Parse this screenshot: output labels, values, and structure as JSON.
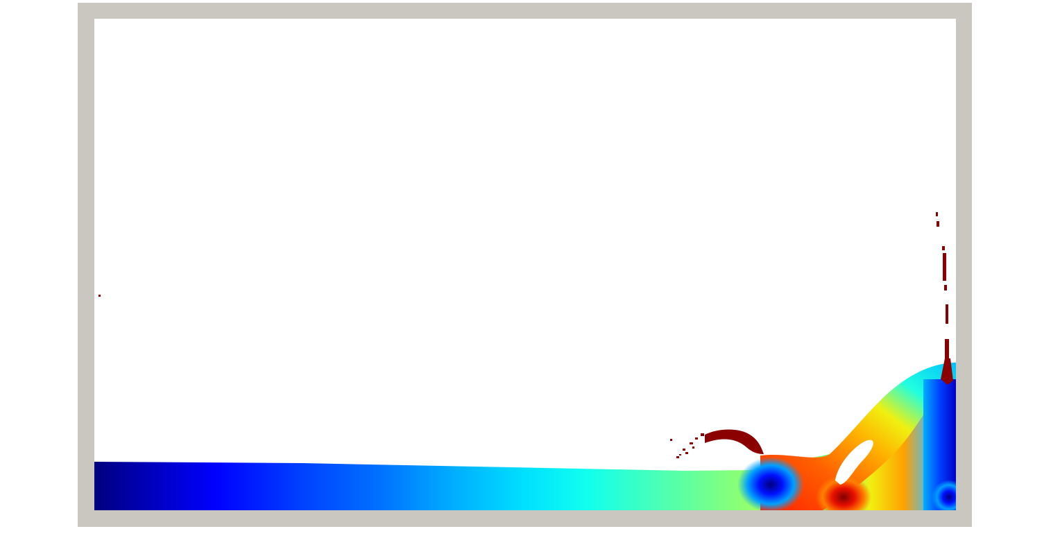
{
  "simulation": {
    "colormap": [
      "#00007f",
      "#0000c8",
      "#0010ff",
      "#0060ff",
      "#00b0ff",
      "#10f0f0",
      "#50ffa8",
      "#a8ff50",
      "#f0f010",
      "#ffb000",
      "#ff6000",
      "#e81000",
      "#800000"
    ],
    "tank_wall_color": "#c9c7bf",
    "background_color": "#ffffff",
    "spray_color": "#8b0000"
  }
}
